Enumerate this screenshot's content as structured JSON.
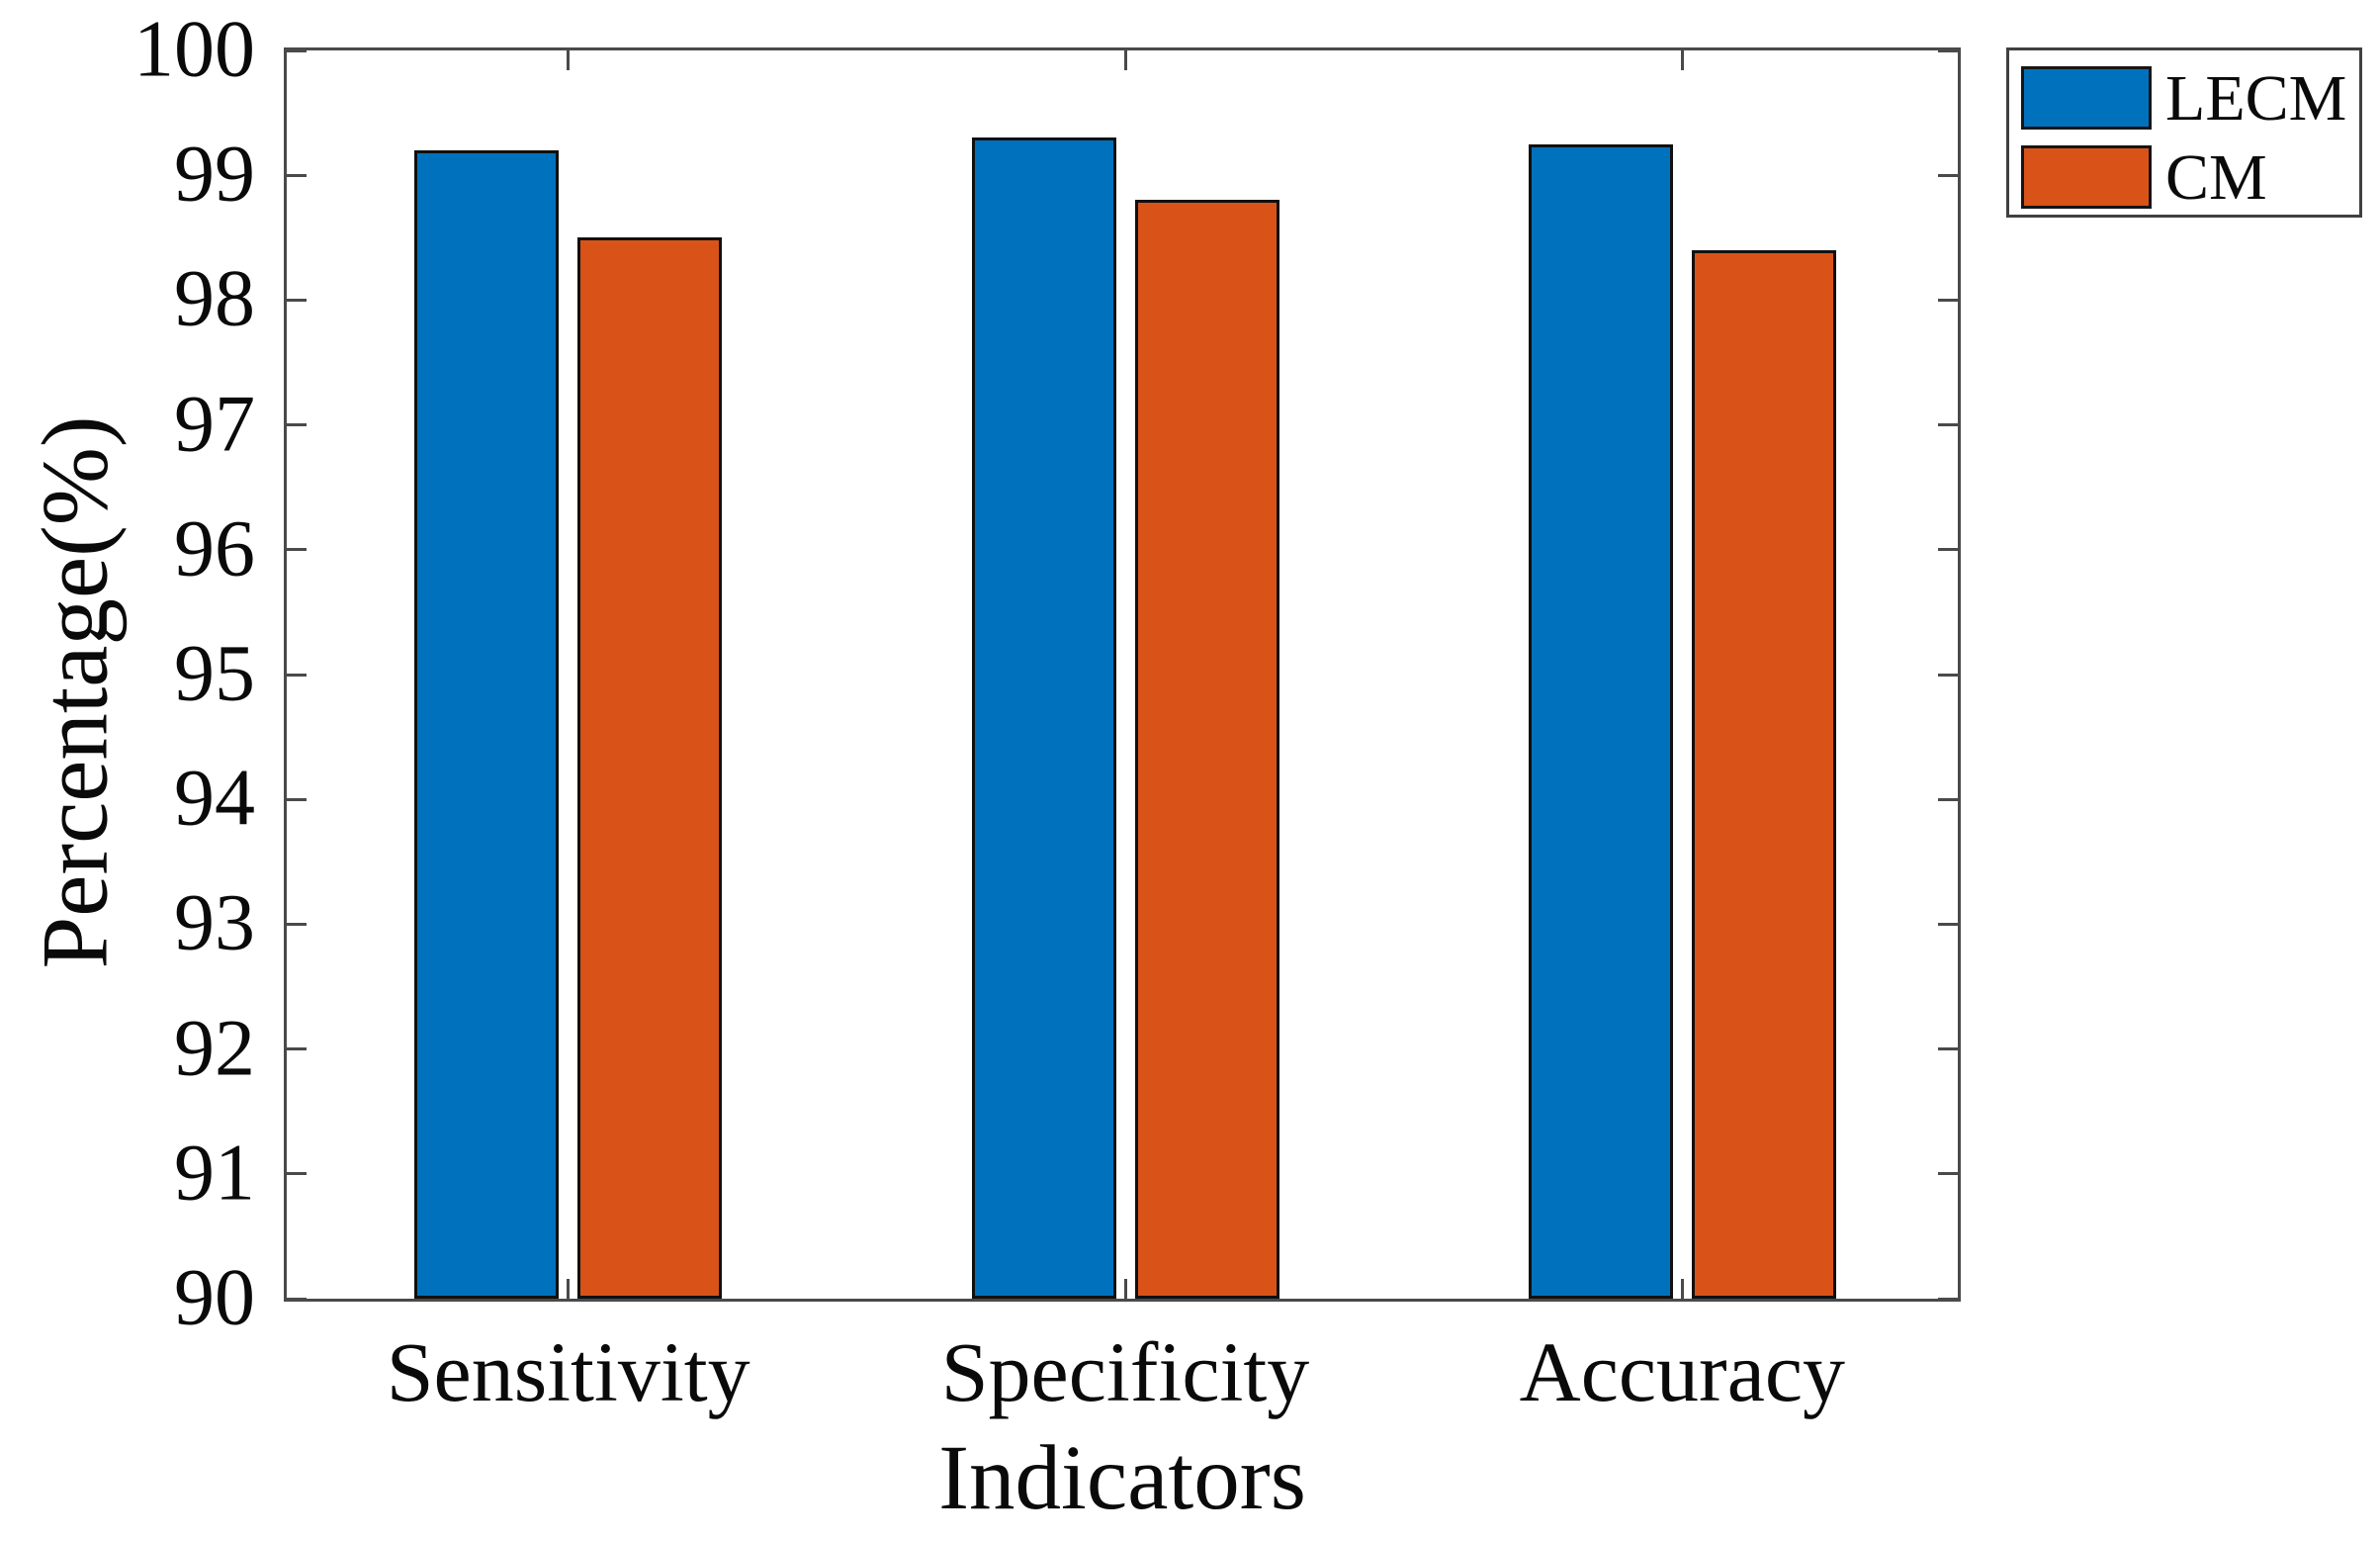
{
  "chart_data": {
    "type": "bar",
    "title": "",
    "xlabel": "Indicators",
    "ylabel": "Percentage(%)",
    "categories": [
      "Sensitivity",
      "Specificity",
      "Accuracy"
    ],
    "series": [
      {
        "name": "LECM",
        "color": "#0072BD",
        "values": [
          99.2,
          99.3,
          99.25
        ]
      },
      {
        "name": "CM",
        "color": "#D95319",
        "values": [
          98.5,
          98.8,
          98.4
        ]
      }
    ],
    "ylim": [
      90,
      100
    ],
    "yticks": [
      90,
      91,
      92,
      93,
      94,
      95,
      96,
      97,
      98,
      99,
      100
    ],
    "grid": false,
    "legend_position": "outside-top-right",
    "bar_edge_color": "#101010"
  },
  "colors": {
    "axis": "#4a4a4a",
    "text": "#0a0a0a",
    "background": "#ffffff",
    "lecm": "#0072BD",
    "cm": "#D95319"
  }
}
